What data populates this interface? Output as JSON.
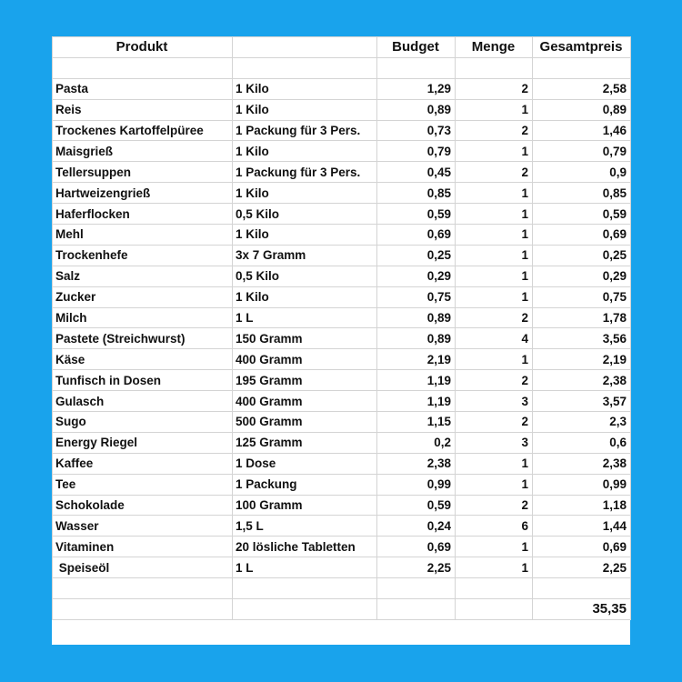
{
  "table": {
    "header": [
      "Produkt",
      null,
      "Budget",
      "Menge",
      "Gesamtpreis"
    ],
    "rows": [
      [
        "Pasta",
        "1 Kilo",
        "1,29",
        "2",
        "2,58"
      ],
      [
        "Reis",
        "1 Kilo",
        "0,89",
        "1",
        "0,89"
      ],
      [
        "Trockenes Kartoffelpüree",
        "1 Packung für 3 Pers.",
        "0,73",
        "2",
        "1,46"
      ],
      [
        "Maisgrieß",
        "1 Kilo",
        "0,79",
        "1",
        "0,79"
      ],
      [
        "Tellersuppen",
        "1 Packung für 3 Pers.",
        "0,45",
        "2",
        "0,9"
      ],
      [
        "Hartweizengrieß",
        "1 Kilo",
        "0,85",
        "1",
        "0,85"
      ],
      [
        "Haferflocken",
        "0,5 Kilo",
        "0,59",
        "1",
        "0,59"
      ],
      [
        "Mehl",
        "1 Kilo",
        "0,69",
        "1",
        "0,69"
      ],
      [
        "Trockenhefe",
        "3x 7 Gramm",
        "0,25",
        "1",
        "0,25"
      ],
      [
        "Salz",
        "0,5 Kilo",
        "0,29",
        "1",
        "0,29"
      ],
      [
        "Zucker",
        "1 Kilo",
        "0,75",
        "1",
        "0,75"
      ],
      [
        "Milch",
        "1 L",
        "0,89",
        "2",
        "1,78"
      ],
      [
        "Pastete (Streichwurst)",
        "150 Gramm",
        "0,89",
        "4",
        "3,56"
      ],
      [
        "Käse",
        "400 Gramm",
        "2,19",
        "1",
        "2,19"
      ],
      [
        "Tunfisch in Dosen",
        "195 Gramm",
        "1,19",
        "2",
        "2,38"
      ],
      [
        "Gulasch",
        "400 Gramm",
        "1,19",
        "3",
        "3,57"
      ],
      [
        "Sugo",
        "500 Gramm",
        "1,15",
        "2",
        "2,3"
      ],
      [
        "Energy Riegel",
        "125 Gramm",
        "0,2",
        "3",
        "0,6"
      ],
      [
        "Kaffee",
        "1 Dose",
        "2,38",
        "1",
        "2,38"
      ],
      [
        "Tee",
        "1 Packung",
        "0,99",
        "1",
        "0,99"
      ],
      [
        "Schokolade",
        "100 Gramm",
        "0,59",
        "2",
        "1,18"
      ],
      [
        "Wasser",
        "1,5 L",
        "0,24",
        "6",
        "1,44"
      ],
      [
        "Vitaminen",
        "20 lösliche Tabletten",
        "0,69",
        "1",
        "0,69"
      ],
      [
        " Speiseöl",
        "1 L",
        "2,25",
        "1",
        "2,25"
      ]
    ],
    "total": "35,35"
  }
}
